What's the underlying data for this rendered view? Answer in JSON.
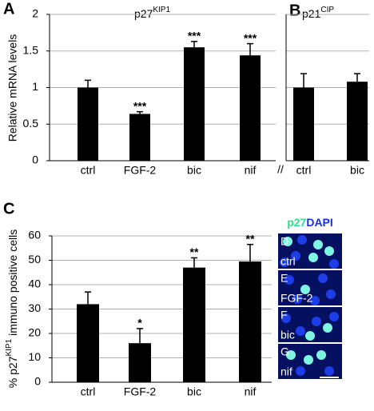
{
  "chart_data": [
    {
      "type": "bar",
      "panel": "A",
      "title": "p27",
      "title_sup": "KIP1",
      "y_label": "Relative mRNA levels",
      "categories": [
        "ctrl",
        "FGF-2",
        "bic",
        "nif"
      ],
      "values": [
        1.0,
        0.64,
        1.55,
        1.44
      ],
      "errors": [
        0.1,
        0.03,
        0.08,
        0.16
      ],
      "significance": [
        null,
        "***",
        "***",
        "***"
      ],
      "color": "#000000",
      "ylim": [
        0,
        2
      ],
      "yticks": [
        0,
        0.5,
        1,
        1.5,
        2
      ],
      "grid": true
    },
    {
      "type": "bar",
      "panel": "B",
      "title": "p21",
      "title_sup": "CIP",
      "axis_break": "//",
      "categories": [
        "ctrl",
        "bic"
      ],
      "values": [
        1.0,
        1.08
      ],
      "errors": [
        0.19,
        0.11
      ],
      "color": "#000000",
      "ylim": [
        0,
        2
      ],
      "yticks": [
        0,
        0.5,
        1,
        1.5,
        2
      ],
      "grid": true
    },
    {
      "type": "bar",
      "panel": "C",
      "y_label": "% p27",
      "y_label_sup": "KIP1",
      "y_label_rest": "immuno positive cells",
      "categories": [
        "ctrl",
        "FGF-2",
        "bic",
        "nif"
      ],
      "values": [
        32,
        16,
        47,
        49.5
      ],
      "errors": [
        5,
        6,
        4,
        7
      ],
      "significance": [
        null,
        "*",
        "**",
        "**"
      ],
      "color": "#000000",
      "ylim": [
        0,
        60
      ],
      "yticks": [
        0,
        10,
        20,
        30,
        40,
        50,
        60
      ],
      "grid": true
    }
  ],
  "images": {
    "header": "p27",
    "header_2": "DAPI",
    "panels": [
      {
        "letter": "D",
        "label": "ctrl"
      },
      {
        "letter": "E",
        "label": "FGF-2"
      },
      {
        "letter": "F",
        "label": "bic"
      },
      {
        "letter": "G",
        "label": "nif"
      }
    ]
  }
}
